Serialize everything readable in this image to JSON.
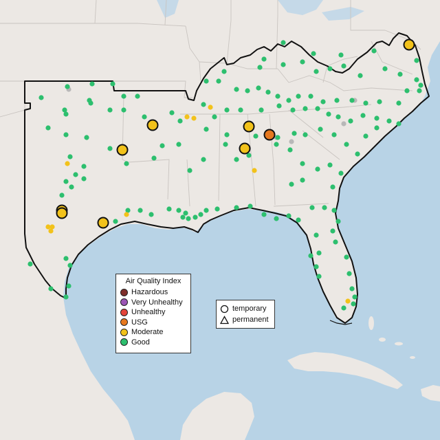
{
  "legend_aqi": {
    "title": "Air Quality Index",
    "items": [
      {
        "label": "Hazardous",
        "color": "#7e2f2a"
      },
      {
        "label": "Very Unhealthy",
        "color": "#9b55b5"
      },
      {
        "label": "Unhealthy",
        "color": "#e3443a"
      },
      {
        "label": "USG",
        "color": "#e6781f"
      },
      {
        "label": "Moderate",
        "color": "#f2c21b"
      },
      {
        "label": "Good",
        "color": "#2dbf6e"
      }
    ]
  },
  "legend_type": {
    "items": [
      {
        "label": "temporary",
        "shape": "circle"
      },
      {
        "label": "permanent",
        "shape": "triangle"
      }
    ]
  },
  "colors": {
    "water": "#b8d3e6",
    "land": "#ece8e4",
    "state_border": "#c9c4c0",
    "region_outline": "#111111",
    "good": "#2dbf6e",
    "moderate": "#f2c21b",
    "usg": "#e6781f",
    "missing": "#b8b8b8"
  }
}
